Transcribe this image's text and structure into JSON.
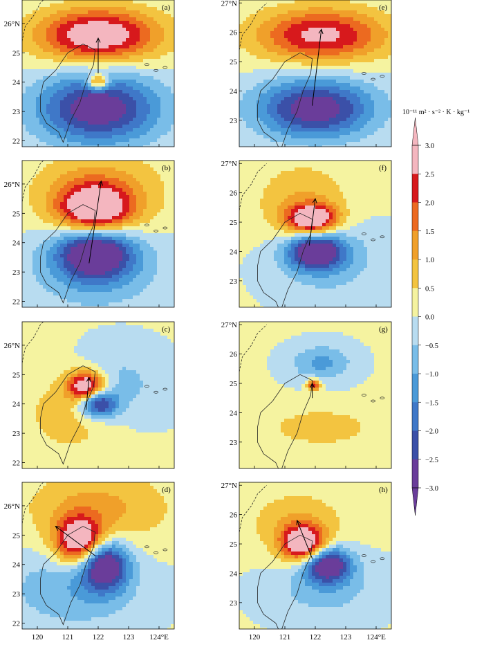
{
  "chart_data": {
    "type": "heatmap",
    "colorbar": {
      "unit_label": "10⁻¹¹ m² · s⁻² · K · kg⁻¹",
      "levels": [
        -3.0,
        -2.5,
        -2.0,
        -1.5,
        -1.0,
        -0.5,
        0.0,
        0.5,
        1.0,
        1.5,
        2.0,
        2.5,
        3.0
      ],
      "tick_labels": [
        "3.0",
        "2.5",
        "2.0",
        "1.5",
        "1.0",
        "0.5",
        "0.0",
        "−0.5",
        "−1.0",
        "−1.5",
        "−2.0",
        "−2.5",
        "−3.0"
      ],
      "colors": [
        "#6a3d9a",
        "#3b50a8",
        "#3f78c8",
        "#4a9ad8",
        "#79bde8",
        "#b8dcf0",
        "#f5f3a0",
        "#f3c440",
        "#f0a02a",
        "#ec6a20",
        "#d7191c",
        "#f4b6bf"
      ]
    },
    "xtick_labels": [
      "120",
      "121",
      "122",
      "123",
      "124°E"
    ],
    "ytick_labels_full": [
      "27°N",
      "26",
      "25",
      "24",
      "23",
      "22"
    ],
    "panels": [
      {
        "label": "(a)",
        "yticks": [
          "26°N",
          "25",
          "24",
          "23",
          "22"
        ],
        "arrow": {
          "from": [
            122.0,
            24.3
          ],
          "to": [
            122.0,
            25.5
          ]
        },
        "features": [
          {
            "lon": 122.0,
            "lat": 25.6,
            "sx": 2.0,
            "sy": 0.9,
            "amp": 3.2
          },
          {
            "lon": 122.0,
            "lat": 23.1,
            "sx": 2.0,
            "sy": 1.2,
            "amp": -3.1
          },
          {
            "lon": 122.0,
            "lat": 24.0,
            "sx": 0.35,
            "sy": 0.25,
            "amp": 2.6
          }
        ]
      },
      {
        "label": "(e)",
        "yticks": [
          "27°N",
          "26",
          "25",
          "24",
          "23"
        ],
        "arrow": {
          "from": [
            121.9,
            23.5
          ],
          "to": [
            122.2,
            26.1
          ]
        },
        "features": [
          {
            "lon": 122.2,
            "lat": 25.9,
            "sx": 2.1,
            "sy": 0.9,
            "amp": 2.7
          },
          {
            "lon": 122.0,
            "lat": 23.4,
            "sx": 1.9,
            "sy": 1.0,
            "amp": -3.1
          }
        ]
      },
      {
        "label": "(b)",
        "yticks": [
          "26°N",
          "25",
          "24",
          "23",
          "22"
        ],
        "arrow": {
          "from": [
            121.7,
            23.3
          ],
          "to": [
            122.1,
            26.1
          ]
        },
        "features": [
          {
            "lon": 121.9,
            "lat": 25.1,
            "sx": 1.2,
            "sy": 0.9,
            "amp": 3.4
          },
          {
            "lon": 121.9,
            "lat": 23.7,
            "sx": 1.2,
            "sy": 0.9,
            "amp": -3.4
          },
          {
            "lon": 122.0,
            "lat": 25.6,
            "sx": 2.3,
            "sy": 1.6,
            "amp": 1.1
          },
          {
            "lon": 121.9,
            "lat": 23.3,
            "sx": 2.3,
            "sy": 1.6,
            "amp": -1.1
          }
        ]
      },
      {
        "label": "(f)",
        "yticks": [
          "27°N",
          "26",
          "25",
          "24",
          "23"
        ],
        "arrow": {
          "from": [
            121.8,
            24.2
          ],
          "to": [
            122.0,
            25.8
          ]
        },
        "features": [
          {
            "lon": 121.9,
            "lat": 25.1,
            "sx": 0.8,
            "sy": 0.5,
            "amp": 3.4
          },
          {
            "lon": 122.0,
            "lat": 24.0,
            "sx": 0.9,
            "sy": 0.6,
            "amp": -3.3
          },
          {
            "lon": 121.6,
            "lat": 25.6,
            "sx": 1.6,
            "sy": 1.4,
            "amp": 1.0
          },
          {
            "lon": 122.4,
            "lat": 23.8,
            "sx": 1.8,
            "sy": 1.4,
            "amp": -0.9
          }
        ]
      },
      {
        "label": "(c)",
        "yticks": [
          "26°N",
          "25",
          "24",
          "23",
          "22"
        ],
        "arrow": {
          "from": [
            121.6,
            23.8
          ],
          "to": [
            121.7,
            24.9
          ]
        },
        "features": [
          {
            "lon": 121.6,
            "lat": 24.6,
            "sx": 0.6,
            "sy": 0.5,
            "amp": 3.4
          },
          {
            "lon": 122.0,
            "lat": 24.0,
            "sx": 0.6,
            "sy": 0.45,
            "amp": -3.0
          },
          {
            "lon": 121.2,
            "lat": 23.8,
            "sx": 1.6,
            "sy": 1.5,
            "amp": 0.9
          },
          {
            "lon": 122.5,
            "lat": 24.6,
            "sx": 1.6,
            "sy": 1.3,
            "amp": -0.9
          }
        ]
      },
      {
        "label": "(g)",
        "yticks": [
          "27°N",
          "26",
          "25",
          "24",
          "23"
        ],
        "arrow": {
          "from": [
            121.9,
            24.5
          ],
          "to": [
            121.9,
            25.0
          ]
        },
        "features": [
          {
            "lon": 121.95,
            "lat": 24.95,
            "sx": 0.22,
            "sy": 0.2,
            "amp": 2.4
          },
          {
            "lon": 122.2,
            "lat": 25.7,
            "sx": 1.0,
            "sy": 0.6,
            "amp": -1.2
          },
          {
            "lon": 122.2,
            "lat": 23.5,
            "sx": 1.6,
            "sy": 0.6,
            "amp": 0.9
          }
        ]
      },
      {
        "label": "(d)",
        "yticks": [
          "26°N",
          "25",
          "24",
          "23",
          "22"
        ],
        "arrow": {
          "from": [
            121.9,
            24.3
          ],
          "to": [
            120.6,
            25.3
          ]
        },
        "features": [
          {
            "lon": 121.4,
            "lat": 24.8,
            "sx": 0.8,
            "sy": 0.8,
            "amp": 3.5
          },
          {
            "lon": 122.2,
            "lat": 24.0,
            "sx": 0.75,
            "sy": 0.85,
            "amp": -3.4
          },
          {
            "lon": 122.0,
            "lat": 25.9,
            "sx": 2.4,
            "sy": 1.3,
            "amp": 1.1
          },
          {
            "lon": 121.2,
            "lat": 23.2,
            "sx": 2.2,
            "sy": 1.4,
            "amp": -1.0
          }
        ]
      },
      {
        "label": "(h)",
        "yticks": [
          "27°N",
          "26",
          "25",
          "24",
          "23"
        ],
        "arrow": {
          "from": [
            121.9,
            24.5
          ],
          "to": [
            121.4,
            25.8
          ]
        },
        "features": [
          {
            "lon": 121.6,
            "lat": 25.0,
            "sx": 0.7,
            "sy": 0.6,
            "amp": 3.5
          },
          {
            "lon": 122.4,
            "lat": 24.3,
            "sx": 0.75,
            "sy": 0.6,
            "amp": -3.3
          },
          {
            "lon": 121.4,
            "lat": 25.7,
            "sx": 1.6,
            "sy": 1.1,
            "amp": 0.9
          },
          {
            "lon": 122.3,
            "lat": 23.5,
            "sx": 1.8,
            "sy": 1.1,
            "amp": -0.8
          }
        ]
      }
    ]
  }
}
